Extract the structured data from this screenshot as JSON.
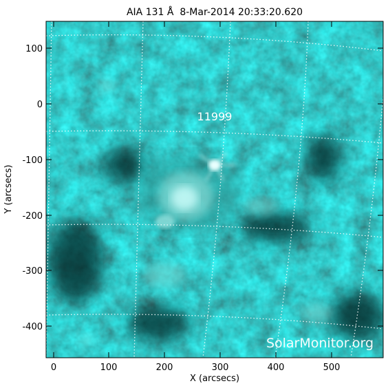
{
  "title": "AIA 131 Å  8-Mar-2014 20:33:20.620",
  "xlabel": "X (arcsecs)",
  "ylabel": "Y (arcsecs)",
  "x_ticks": [
    "0",
    "100",
    "200",
    "300",
    "400",
    "500"
  ],
  "y_ticks": [
    "100",
    "0",
    "-100",
    "-200",
    "-300",
    "-400"
  ],
  "region_label": "11999",
  "watermark": "SolarMonitor.org",
  "colors": {
    "plasma_dark": "#062a2a",
    "plasma_mid": "#1e7777",
    "plasma_bright": "#a8f0ee",
    "grid": "#ffffff"
  }
}
